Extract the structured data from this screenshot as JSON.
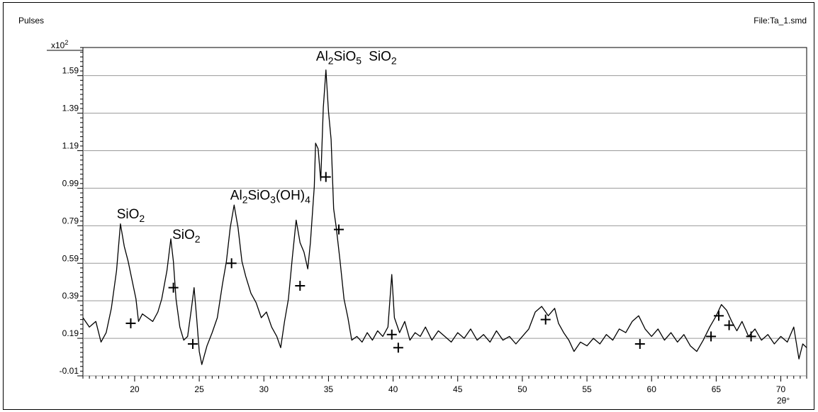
{
  "header": {
    "y_axis_label": "Pulses",
    "file_label": "File:Ta_1.smd"
  },
  "chart_data": {
    "type": "line",
    "ylabel": "Pulses",
    "xlabel": "2θ°",
    "y_multiplier": "x10",
    "y_multiplier_exp": "2",
    "xlim": [
      16,
      72
    ],
    "ylim": [
      -0.01,
      1.74
    ],
    "x_ticks": [
      20,
      25,
      30,
      35,
      40,
      45,
      50,
      55,
      60,
      65,
      70
    ],
    "x_tick_labels": [
      "20",
      "25",
      "30",
      "35",
      "40",
      "45",
      "50",
      "55",
      "60",
      "65",
      "70"
    ],
    "y_ticks": [
      -0.01,
      0.19,
      0.39,
      0.59,
      0.79,
      0.99,
      1.19,
      1.39,
      1.59
    ],
    "y_tick_labels": [
      "-0.01",
      "0.19",
      "0.39",
      "0.59",
      "0.79",
      "0.99",
      "1.19",
      "1.39",
      "1.59"
    ],
    "grid": "horizontal",
    "line_color": "#000000",
    "series": [
      {
        "values_xy": [
          [
            16.0,
            0.3
          ],
          [
            16.5,
            0.25
          ],
          [
            17.0,
            0.28
          ],
          [
            17.4,
            0.17
          ],
          [
            17.8,
            0.22
          ],
          [
            18.2,
            0.35
          ],
          [
            18.6,
            0.55
          ],
          [
            18.9,
            0.8
          ],
          [
            19.2,
            0.68
          ],
          [
            19.5,
            0.6
          ],
          [
            19.8,
            0.5
          ],
          [
            20.1,
            0.4
          ],
          [
            20.3,
            0.28
          ],
          [
            20.6,
            0.32
          ],
          [
            21.0,
            0.3
          ],
          [
            21.4,
            0.28
          ],
          [
            21.8,
            0.33
          ],
          [
            22.1,
            0.4
          ],
          [
            22.5,
            0.55
          ],
          [
            22.8,
            0.72
          ],
          [
            23.0,
            0.6
          ],
          [
            23.2,
            0.4
          ],
          [
            23.5,
            0.25
          ],
          [
            23.8,
            0.18
          ],
          [
            24.1,
            0.2
          ],
          [
            24.4,
            0.35
          ],
          [
            24.6,
            0.46
          ],
          [
            24.8,
            0.3
          ],
          [
            25.0,
            0.12
          ],
          [
            25.2,
            0.05
          ],
          [
            25.6,
            0.15
          ],
          [
            26.0,
            0.22
          ],
          [
            26.4,
            0.3
          ],
          [
            26.8,
            0.48
          ],
          [
            27.1,
            0.6
          ],
          [
            27.4,
            0.78
          ],
          [
            27.7,
            0.9
          ],
          [
            28.0,
            0.78
          ],
          [
            28.3,
            0.6
          ],
          [
            28.6,
            0.52
          ],
          [
            29.0,
            0.43
          ],
          [
            29.4,
            0.38
          ],
          [
            29.8,
            0.3
          ],
          [
            30.2,
            0.33
          ],
          [
            30.6,
            0.25
          ],
          [
            31.0,
            0.2
          ],
          [
            31.3,
            0.14
          ],
          [
            31.6,
            0.28
          ],
          [
            31.9,
            0.4
          ],
          [
            32.2,
            0.62
          ],
          [
            32.5,
            0.82
          ],
          [
            32.8,
            0.7
          ],
          [
            33.1,
            0.65
          ],
          [
            33.4,
            0.56
          ],
          [
            33.6,
            0.7
          ],
          [
            33.9,
            1.0
          ],
          [
            34.0,
            1.23
          ],
          [
            34.2,
            1.2
          ],
          [
            34.4,
            1.03
          ],
          [
            34.6,
            1.42
          ],
          [
            34.8,
            1.62
          ],
          [
            35.0,
            1.4
          ],
          [
            35.2,
            1.25
          ],
          [
            35.4,
            0.88
          ],
          [
            35.6,
            0.78
          ],
          [
            35.9,
            0.6
          ],
          [
            36.2,
            0.4
          ],
          [
            36.5,
            0.3
          ],
          [
            36.8,
            0.18
          ],
          [
            37.2,
            0.2
          ],
          [
            37.6,
            0.17
          ],
          [
            38.0,
            0.22
          ],
          [
            38.4,
            0.18
          ],
          [
            38.8,
            0.23
          ],
          [
            39.2,
            0.2
          ],
          [
            39.6,
            0.25
          ],
          [
            39.9,
            0.53
          ],
          [
            40.1,
            0.3
          ],
          [
            40.5,
            0.22
          ],
          [
            40.9,
            0.28
          ],
          [
            41.3,
            0.18
          ],
          [
            41.7,
            0.22
          ],
          [
            42.1,
            0.2
          ],
          [
            42.5,
            0.25
          ],
          [
            43.0,
            0.18
          ],
          [
            43.5,
            0.23
          ],
          [
            44.0,
            0.2
          ],
          [
            44.5,
            0.17
          ],
          [
            45.0,
            0.22
          ],
          [
            45.5,
            0.19
          ],
          [
            46.0,
            0.24
          ],
          [
            46.5,
            0.18
          ],
          [
            47.0,
            0.21
          ],
          [
            47.5,
            0.17
          ],
          [
            48.0,
            0.23
          ],
          [
            48.5,
            0.18
          ],
          [
            49.0,
            0.2
          ],
          [
            49.5,
            0.16
          ],
          [
            50.0,
            0.2
          ],
          [
            50.5,
            0.24
          ],
          [
            51.0,
            0.33
          ],
          [
            51.5,
            0.36
          ],
          [
            52.0,
            0.31
          ],
          [
            52.5,
            0.35
          ],
          [
            52.8,
            0.27
          ],
          [
            53.2,
            0.22
          ],
          [
            53.6,
            0.18
          ],
          [
            54.0,
            0.12
          ],
          [
            54.5,
            0.17
          ],
          [
            55.0,
            0.15
          ],
          [
            55.5,
            0.19
          ],
          [
            56.0,
            0.16
          ],
          [
            56.5,
            0.21
          ],
          [
            57.0,
            0.18
          ],
          [
            57.5,
            0.24
          ],
          [
            58.0,
            0.22
          ],
          [
            58.5,
            0.28
          ],
          [
            59.0,
            0.31
          ],
          [
            59.5,
            0.24
          ],
          [
            60.0,
            0.2
          ],
          [
            60.5,
            0.24
          ],
          [
            61.0,
            0.18
          ],
          [
            61.5,
            0.22
          ],
          [
            62.0,
            0.17
          ],
          [
            62.5,
            0.21
          ],
          [
            63.0,
            0.15
          ],
          [
            63.5,
            0.12
          ],
          [
            64.0,
            0.18
          ],
          [
            64.5,
            0.25
          ],
          [
            65.0,
            0.31
          ],
          [
            65.4,
            0.37
          ],
          [
            65.8,
            0.34
          ],
          [
            66.2,
            0.28
          ],
          [
            66.6,
            0.23
          ],
          [
            67.0,
            0.28
          ],
          [
            67.5,
            0.2
          ],
          [
            68.0,
            0.24
          ],
          [
            68.5,
            0.18
          ],
          [
            69.0,
            0.21
          ],
          [
            69.5,
            0.16
          ],
          [
            70.0,
            0.2
          ],
          [
            70.5,
            0.17
          ],
          [
            71.0,
            0.25
          ],
          [
            71.4,
            0.08
          ],
          [
            71.7,
            0.16
          ],
          [
            72.0,
            0.14
          ]
        ]
      }
    ],
    "markers": [
      [
        19.7,
        0.27
      ],
      [
        23.0,
        0.46
      ],
      [
        24.5,
        0.16
      ],
      [
        27.5,
        0.59
      ],
      [
        32.8,
        0.47
      ],
      [
        34.8,
        1.05
      ],
      [
        35.8,
        0.77
      ],
      [
        39.9,
        0.21
      ],
      [
        40.4,
        0.14
      ],
      [
        51.8,
        0.29
      ],
      [
        59.1,
        0.16
      ],
      [
        64.6,
        0.2
      ],
      [
        65.2,
        0.31
      ],
      [
        66.0,
        0.26
      ],
      [
        67.7,
        0.2
      ]
    ],
    "annotations": [
      {
        "x": 19.7,
        "y": 0.83,
        "base": "SiO",
        "sub": "2",
        "rest": ""
      },
      {
        "x": 24.0,
        "y": 0.72,
        "base": "SiO",
        "sub": "2",
        "rest": ""
      },
      {
        "x": 30.5,
        "y": 0.93,
        "base": "Al",
        "sub": "2",
        "base2": "SiO",
        "sub2": "3",
        "rest": "(OH)",
        "sub3": "4"
      },
      {
        "x": 35.8,
        "y": 1.67,
        "base": "Al",
        "sub": "2",
        "base2": "SiO",
        "sub2": "5",
        "rest": ""
      },
      {
        "x": 39.2,
        "y": 1.67,
        "base": "SiO",
        "sub": "2",
        "rest": ""
      }
    ]
  }
}
